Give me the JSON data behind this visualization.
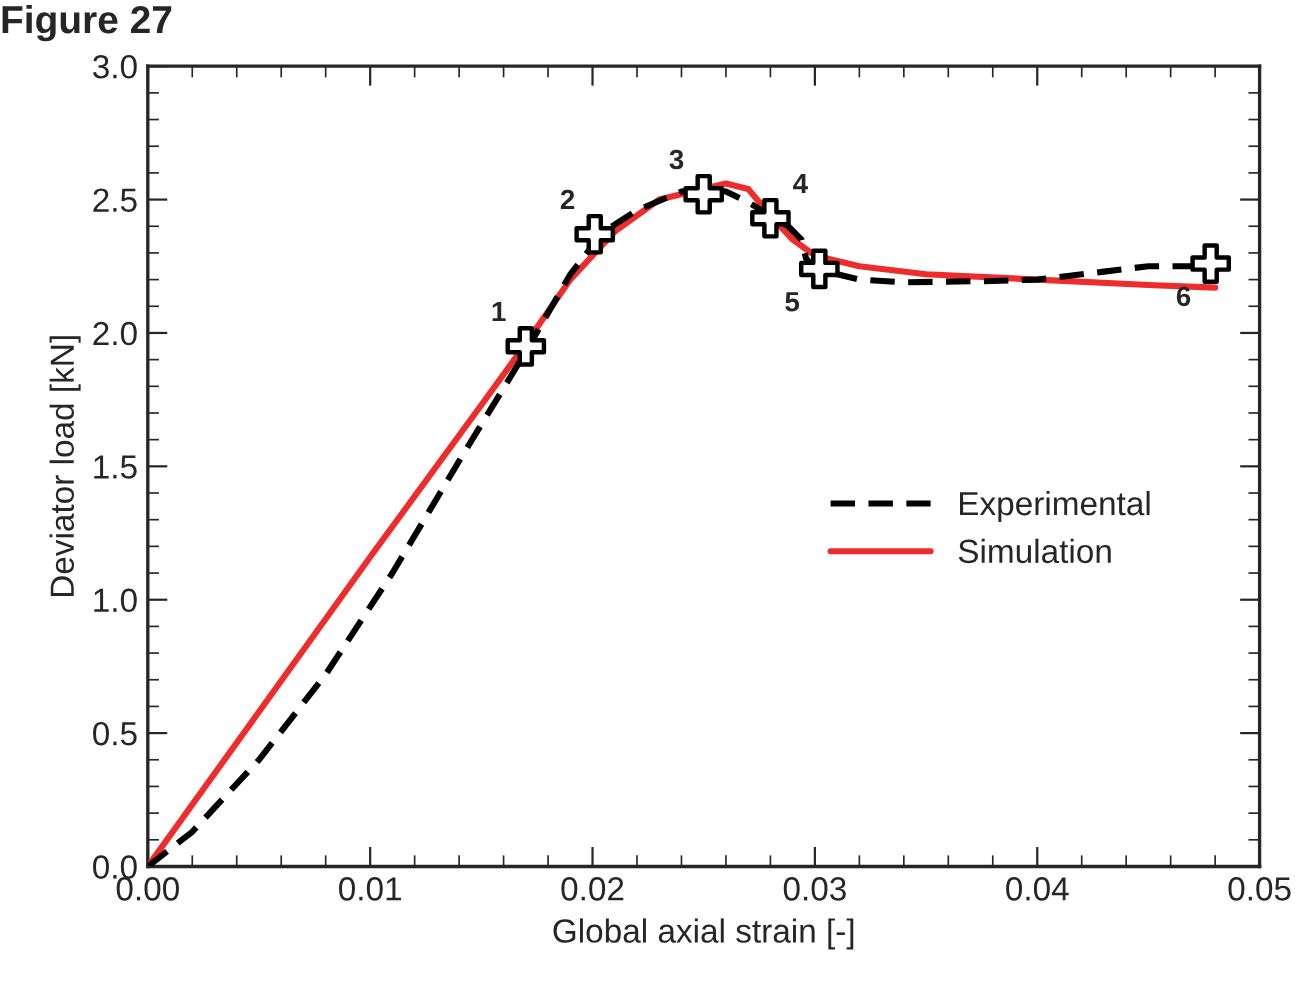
{
  "chart_data": {
    "type": "line",
    "title": "Figure 27",
    "xlabel": "Global axial strain [-]",
    "ylabel": "Deviator load [kN]",
    "xlim": [
      0,
      0.05
    ],
    "ylim": [
      0,
      3.0
    ],
    "xticks": [
      {
        "value": 0,
        "label": "0.00"
      },
      {
        "value": 0.01,
        "label": "0.01"
      },
      {
        "value": 0.02,
        "label": "0.02"
      },
      {
        "value": 0.03,
        "label": "0.03"
      },
      {
        "value": 0.04,
        "label": "0.04"
      },
      {
        "value": 0.05,
        "label": "0.05"
      }
    ],
    "yticks": [
      {
        "value": 0,
        "label": "0.0"
      },
      {
        "value": 0.5,
        "label": "0.5"
      },
      {
        "value": 1.0,
        "label": "1.0"
      },
      {
        "value": 1.5,
        "label": "1.5"
      },
      {
        "value": 2.0,
        "label": "2.0"
      },
      {
        "value": 2.5,
        "label": "2.5"
      },
      {
        "value": 3.0,
        "label": "3.0"
      }
    ],
    "grid": false,
    "legend": "right",
    "series": [
      {
        "name": "Experimental",
        "color": "#000000",
        "line_style": "dashed",
        "x": [
          0,
          0.002,
          0.005,
          0.008,
          0.011,
          0.014,
          0.017,
          0.019,
          0.0205,
          0.022,
          0.024,
          0.025,
          0.026,
          0.027,
          0.028,
          0.0288,
          0.0294,
          0.0296,
          0.03,
          0.032,
          0.034,
          0.038,
          0.04,
          0.043,
          0.045,
          0.0478
        ],
        "values": [
          0,
          0.13,
          0.4,
          0.72,
          1.1,
          1.52,
          1.93,
          2.22,
          2.38,
          2.46,
          2.53,
          2.54,
          2.53,
          2.49,
          2.44,
          2.4,
          2.35,
          2.28,
          2.24,
          2.2,
          2.19,
          2.195,
          2.2,
          2.23,
          2.25,
          2.25
        ]
      },
      {
        "name": "Simulation",
        "color": "#ee2c2c",
        "line_style": "solid",
        "x": [
          0,
          0.005,
          0.01,
          0.015,
          0.017,
          0.019,
          0.021,
          0.023,
          0.026,
          0.027,
          0.028,
          0.029,
          0.03,
          0.032,
          0.035,
          0.04,
          0.045,
          0.048
        ],
        "values": [
          0,
          0.58,
          1.16,
          1.73,
          1.96,
          2.2,
          2.38,
          2.5,
          2.56,
          2.54,
          2.44,
          2.35,
          2.29,
          2.25,
          2.22,
          2.2,
          2.18,
          2.17
        ]
      },
      {
        "type": "scatter",
        "color": "#ffffff",
        "marker": "cross",
        "x": [
          0.017,
          0.0201,
          0.025,
          0.028,
          0.0302,
          0.0478
        ],
        "values": [
          1.95,
          2.37,
          2.52,
          2.43,
          2.24,
          2.26
        ]
      }
    ],
    "annotations": [
      {
        "text": "1",
        "x": 0.017,
        "y": 1.95
      },
      {
        "text": "2",
        "x": 0.0201,
        "y": 2.37
      },
      {
        "text": "3",
        "x": 0.025,
        "y": 2.52
      },
      {
        "text": "4",
        "x": 0.028,
        "y": 2.43
      },
      {
        "text": "5",
        "x": 0.0302,
        "y": 2.24
      },
      {
        "text": "6",
        "x": 0.0478,
        "y": 2.26
      }
    ]
  }
}
